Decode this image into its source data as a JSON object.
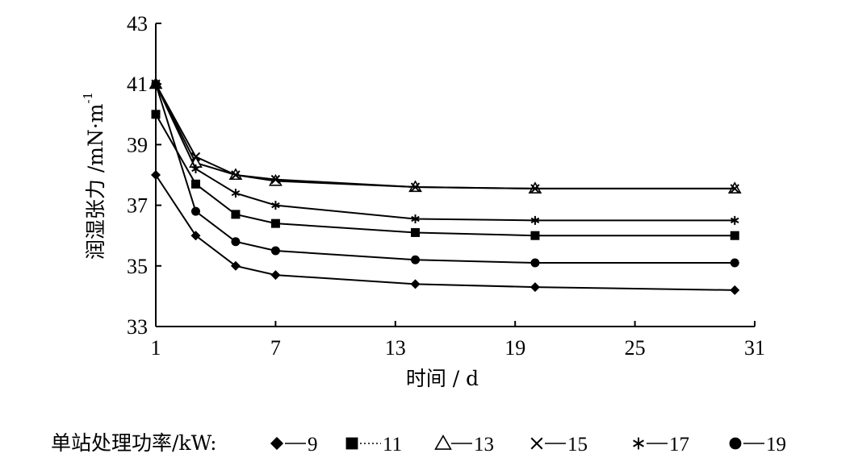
{
  "chart_data": {
    "type": "line",
    "xlabel": "时间 / d",
    "ylabel": "润湿张力 /mN·m",
    "ylabel_superscript": "-1",
    "xlim": [
      1,
      31
    ],
    "ylim": [
      33,
      43
    ],
    "xticks": [
      1,
      7,
      13,
      19,
      25,
      31
    ],
    "yticks": [
      33,
      35,
      37,
      39,
      41,
      43
    ],
    "grid": false,
    "legend_position": "bottom",
    "legend_title": "单站处理功率/kW:",
    "x": [
      1,
      3,
      5,
      7,
      14,
      20,
      30
    ],
    "series": [
      {
        "name": "9",
        "marker": "diamond",
        "line": "solid",
        "values": [
          38.0,
          36.0,
          35.0,
          34.7,
          34.4,
          34.3,
          34.2
        ]
      },
      {
        "name": "11",
        "marker": "square",
        "line": "dotted",
        "values": [
          40.0,
          37.7,
          36.7,
          36.4,
          36.1,
          36.0,
          36.0
        ]
      },
      {
        "name": "13",
        "marker": "triangle-open",
        "line": "solid",
        "values": [
          41.0,
          38.4,
          38.0,
          37.8,
          37.6,
          37.55,
          37.55
        ]
      },
      {
        "name": "15",
        "marker": "x",
        "line": "solid",
        "values": [
          41.0,
          38.6,
          38.0,
          37.85,
          37.6,
          37.55,
          37.55
        ]
      },
      {
        "name": "17",
        "marker": "asterisk",
        "line": "solid",
        "values": [
          41.0,
          38.2,
          37.4,
          37.0,
          36.55,
          36.5,
          36.5
        ]
      },
      {
        "name": "19",
        "marker": "circle",
        "line": "solid",
        "values": [
          41.0,
          36.8,
          35.8,
          35.5,
          35.2,
          35.1,
          35.1
        ]
      }
    ]
  }
}
